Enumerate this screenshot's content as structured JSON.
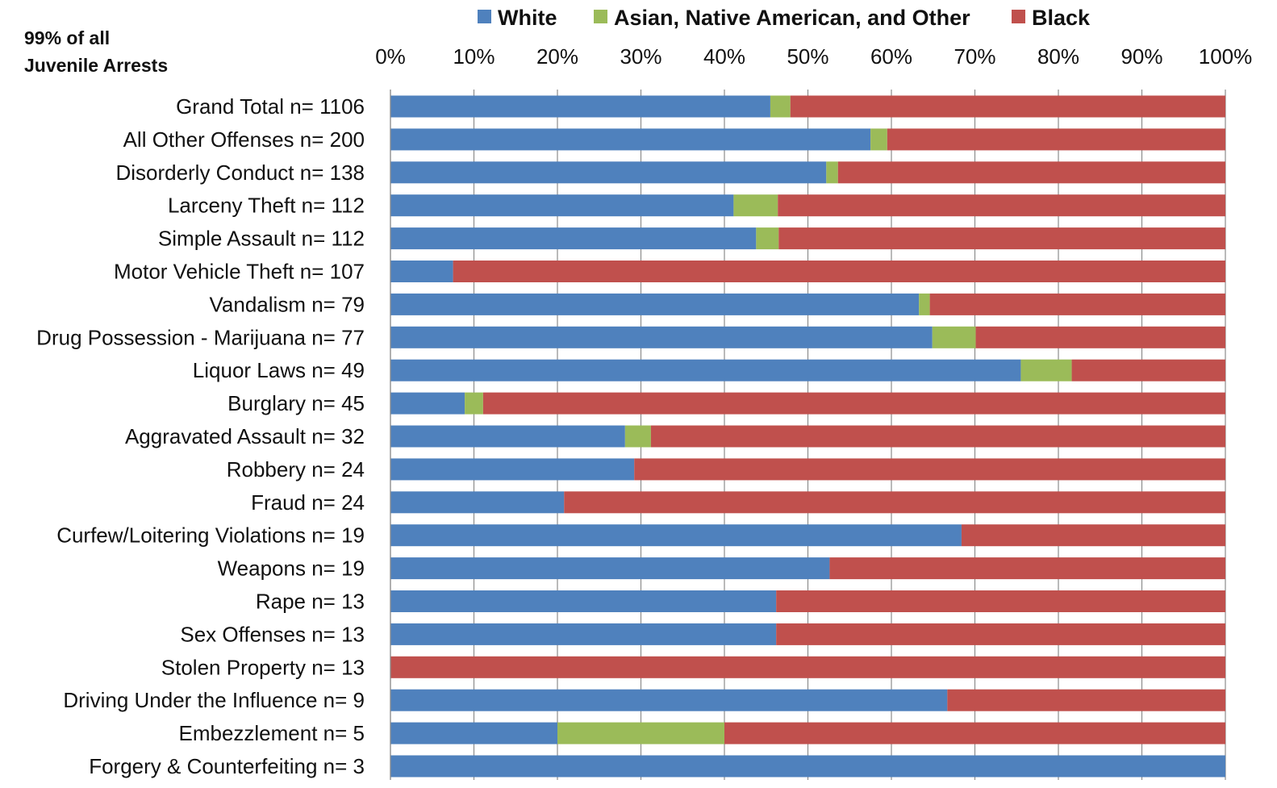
{
  "note": {
    "line1": "99% of all",
    "line2": "Juvenile Arrests"
  },
  "chart_data": {
    "type": "bar",
    "orientation": "horizontal",
    "stacked": "percent",
    "title": "",
    "xlabel": "",
    "ylabel": "",
    "xlim": [
      0,
      100
    ],
    "x_ticks": [
      "0%",
      "10%",
      "20%",
      "30%",
      "40%",
      "50%",
      "60%",
      "70%",
      "80%",
      "90%",
      "100%"
    ],
    "grid": "vertical",
    "legend_position": "top",
    "categories": [
      "Grand Total n= 1106",
      "All Other Offenses n= 200",
      "Disorderly Conduct n= 138",
      "Larceny Theft n= 112",
      "Simple Assault n= 112",
      "Motor Vehicle Theft n= 107",
      "Vandalism n= 79",
      "Drug Possession - Marijuana n= 77",
      "Liquor Laws n= 49",
      "Burglary n= 45",
      "Aggravated Assault n= 32",
      "Robbery n= 24",
      "Fraud n= 24",
      "Curfew/Loitering Violations n= 19",
      "Weapons n= 19",
      "Rape n= 13",
      "Sex Offenses n= 13",
      "Stolen Property n= 13",
      "Driving Under the Influence n= 9",
      "Embezzlement n= 5",
      "Forgery & Counterfeiting n= 3"
    ],
    "series": [
      {
        "name": "White",
        "color": "#4F81BD",
        "values": [
          45.5,
          57.5,
          52.2,
          41.1,
          43.8,
          7.5,
          63.3,
          64.9,
          75.5,
          8.9,
          28.1,
          29.2,
          20.8,
          68.4,
          52.6,
          46.2,
          46.2,
          0,
          66.7,
          20,
          100
        ]
      },
      {
        "name": "Asian, Native American, and Other",
        "color": "#9BBB59",
        "values": [
          2.4,
          2.0,
          1.4,
          5.3,
          2.7,
          0,
          1.3,
          5.2,
          6.1,
          2.2,
          3.1,
          0,
          0,
          0,
          0,
          0,
          0,
          0,
          0,
          20,
          0
        ]
      },
      {
        "name": "Black",
        "color": "#C0504D",
        "values": [
          52.1,
          40.5,
          46.4,
          53.6,
          53.5,
          92.5,
          35.4,
          29.9,
          18.4,
          88.9,
          68.8,
          70.8,
          79.2,
          31.6,
          47.4,
          53.8,
          53.8,
          100,
          33.3,
          60,
          0
        ]
      }
    ]
  }
}
